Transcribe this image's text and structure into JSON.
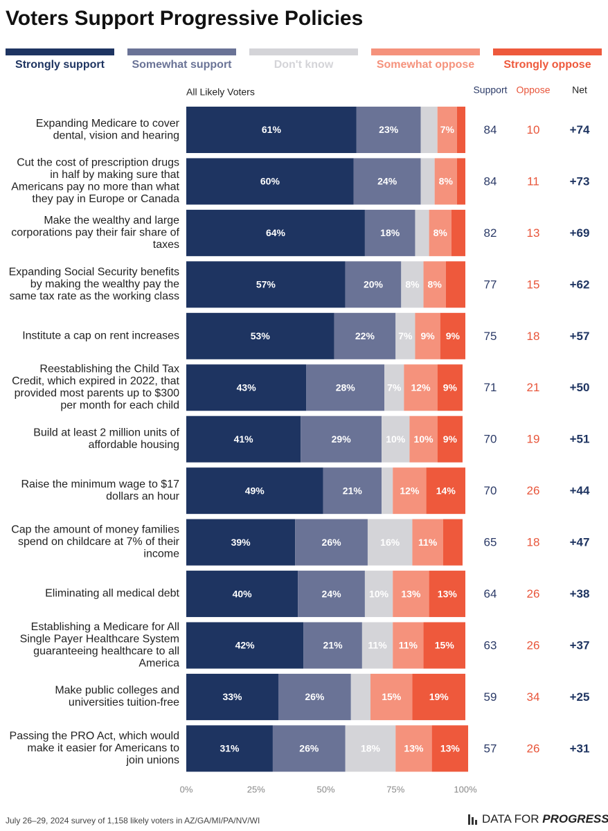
{
  "chart_data": {
    "type": "stacked-bar-horizontal",
    "title": "Voters Support Progressive Policies",
    "subtitle": "All Likely Voters",
    "categories": [
      "Expanding Medicare to cover dental, vision and hearing",
      "Cut the cost of prescription drugs in half by making sure that Americans pay no more than what they pay in Europe or Canada",
      "Make the wealthy and large corporations pay their fair share of taxes",
      "Expanding Social Security benefits by making the wealthy pay the same tax rate as the working class",
      "Institute a cap on rent increases",
      "Reestablishing the Child Tax Credit, which expired in 2022, that provided most parents up to $300 per month for each child",
      "Build at least 2 million units of affordable housing",
      "Raise the minimum wage to $17 dollars an hour",
      "Cap the amount of money families spend on childcare at 7% of their income",
      "Eliminating all medical debt",
      "Establishing a Medicare for All Single Payer Healthcare System guaranteeing healthcare to all America",
      "Make public colleges and universities tuition-free",
      "Passing the PRO Act, which would make it easier for Americans to join unions"
    ],
    "series": [
      {
        "name": "Strongly support",
        "color": "#1e3461",
        "values": [
          61,
          60,
          64,
          57,
          53,
          43,
          41,
          49,
          39,
          40,
          42,
          33,
          31
        ],
        "value_labels": [
          "61%",
          "60%",
          "64%",
          "57%",
          "53%",
          "43%",
          "41%",
          "49%",
          "39%",
          "40%",
          "42%",
          "33%",
          "31%"
        ]
      },
      {
        "name": "Somewhat support",
        "color": "#6a7396",
        "values": [
          23,
          24,
          18,
          20,
          22,
          28,
          29,
          21,
          26,
          24,
          21,
          26,
          26
        ],
        "value_labels": [
          "23%",
          "24%",
          "18%",
          "20%",
          "22%",
          "28%",
          "29%",
          "21%",
          "26%",
          "24%",
          "21%",
          "26%",
          "26%"
        ]
      },
      {
        "name": "Don't know",
        "color": "#d4d4d8",
        "values": [
          6,
          5,
          5,
          8,
          7,
          7,
          10,
          4,
          16,
          10,
          11,
          7,
          18
        ],
        "value_labels": [
          null,
          null,
          null,
          "8%",
          "7%",
          "7%",
          "10%",
          null,
          "16%",
          "10%",
          "11%",
          null,
          "18%"
        ]
      },
      {
        "name": "Somewhat oppose",
        "color": "#f5927c",
        "values": [
          7,
          8,
          8,
          8,
          9,
          12,
          10,
          12,
          11,
          13,
          11,
          15,
          13
        ],
        "value_labels": [
          "7%",
          "8%",
          "8%",
          "8%",
          "9%",
          "12%",
          "10%",
          "12%",
          "11%",
          "13%",
          "11%",
          "15%",
          "13%"
        ]
      },
      {
        "name": "Strongly oppose",
        "color": "#ee593c",
        "values": [
          3,
          3,
          5,
          7,
          9,
          9,
          9,
          14,
          7,
          13,
          15,
          19,
          13
        ],
        "value_labels": [
          null,
          null,
          null,
          null,
          "9%",
          "9%",
          "9%",
          "14%",
          null,
          "13%",
          "15%",
          "19%",
          "13%"
        ]
      }
    ],
    "xlim": [
      0,
      100
    ],
    "xticks": [
      {
        "value": 0,
        "label": "0%"
      },
      {
        "value": 25,
        "label": "25%"
      },
      {
        "value": 50,
        "label": "50%"
      },
      {
        "value": 75,
        "label": "75%"
      },
      {
        "value": 100,
        "label": "100%"
      }
    ],
    "columns": {
      "support": {
        "header": "Support",
        "color": "#2b3a67",
        "values": [
          84,
          84,
          82,
          77,
          75,
          71,
          70,
          70,
          65,
          64,
          63,
          59,
          57
        ]
      },
      "oppose": {
        "header": "Oppose",
        "color": "#e8553a",
        "values": [
          10,
          11,
          13,
          15,
          18,
          21,
          19,
          26,
          18,
          26,
          26,
          34,
          26
        ]
      },
      "net": {
        "header": "Net",
        "color": "#1e3461",
        "values": [
          "+74",
          "+73",
          "+69",
          "+62",
          "+57",
          "+50",
          "+51",
          "+44",
          "+47",
          "+38",
          "+37",
          "+25",
          "+31"
        ]
      }
    },
    "footnote": "July 26–29, 2024 survey of 1,158 likely voters in AZ/GA/MI/PA/NV/WI",
    "logo": {
      "text": "DATA FOR",
      "bold": "PROGRESS"
    }
  }
}
